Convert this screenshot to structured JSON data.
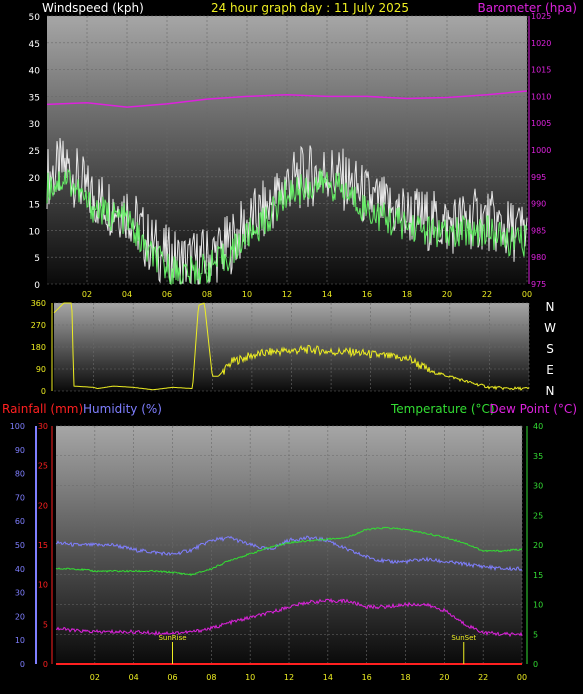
{
  "header": {
    "wind_title": "Windspeed (kph)",
    "graph_title": "24 hour graph day : 11 July 2025",
    "baro_title": "Barometer (hpa)"
  },
  "panel3_titles": {
    "rain": "Rainfall (mm)",
    "humidity": "Humidity (%)",
    "temperature": "Temperature (°C)",
    "dewpoint": "Dew Point (°C)"
  },
  "colors": {
    "wind": "#e8e8e8",
    "wind_avg": "#66ee66",
    "barometer": "#dd22dd",
    "direction": "#eeee22",
    "rain": "#ff2020",
    "humidity": "#7f7fff",
    "temperature": "#33dd33",
    "dewpoint": "#dd22dd",
    "sun": "#eeee22",
    "title": "#eeee22"
  },
  "x_ticks": [
    "02",
    "04",
    "06",
    "08",
    "10",
    "12",
    "14",
    "16",
    "18",
    "20",
    "22",
    "00"
  ],
  "compass": [
    "N",
    "W",
    "S",
    "E",
    "N"
  ],
  "events": {
    "sunrise_label": "SunRise",
    "sunset_label": "SunSet",
    "sunrise_hour": 6.0,
    "sunset_hour": 21.0
  },
  "chart_data": [
    {
      "type": "line",
      "x_unit": "hour",
      "xlim": [
        0,
        24
      ],
      "ylabel": "Windspeed (kph)",
      "ylabel2": "Barometer (hpa)",
      "ylim": [
        0,
        50
      ],
      "ylim2": [
        975,
        1025
      ],
      "yticks": [
        0,
        5,
        10,
        15,
        20,
        25,
        30,
        35,
        40,
        45,
        50
      ],
      "yticks2": [
        975,
        980,
        985,
        990,
        995,
        1000,
        1005,
        1010,
        1015,
        1020,
        1025
      ],
      "grid": true,
      "series": [
        {
          "name": "Windspeed (kph)",
          "axis": "left",
          "x": [
            0,
            1,
            2,
            3,
            4,
            5,
            6,
            7,
            8,
            9,
            10,
            11,
            12,
            13,
            14,
            15,
            16,
            17,
            18,
            19,
            20,
            21,
            22,
            23,
            24
          ],
          "y": [
            18,
            20,
            15,
            13,
            12,
            6,
            3,
            2,
            3,
            5,
            9,
            12,
            17,
            18,
            19,
            17,
            14,
            12,
            11,
            10,
            9,
            10,
            10,
            8,
            8
          ]
        },
        {
          "name": "Barometer (hpa)",
          "axis": "right",
          "x": [
            0,
            2,
            4,
            6,
            8,
            10,
            12,
            14,
            16,
            18,
            20,
            22,
            24
          ],
          "y": [
            1008.5,
            1008.8,
            1008,
            1008.6,
            1009.5,
            1010,
            1010.3,
            1010,
            1010,
            1009.6,
            1009.8,
            1010.3,
            1011
          ]
        }
      ]
    },
    {
      "type": "line",
      "x_unit": "hour",
      "xlim": [
        0,
        24
      ],
      "ylabel": "",
      "ylim": [
        0,
        360
      ],
      "yticks": [
        0,
        45,
        90,
        135,
        180,
        225,
        270,
        315,
        360
      ],
      "series": [
        {
          "name": "",
          "x": [
            0,
            0.5,
            0.9,
            1.0,
            2.0,
            2.2,
            3,
            4,
            5,
            6,
            7,
            7.3,
            7.6,
            8,
            8.3,
            9,
            10,
            11,
            12,
            13,
            14,
            15,
            16,
            17,
            18,
            19,
            20,
            21,
            22,
            23,
            24
          ],
          "y": [
            320,
            360,
            360,
            20,
            15,
            10,
            20,
            15,
            5,
            15,
            10,
            350,
            360,
            60,
            60,
            120,
            145,
            160,
            165,
            170,
            160,
            160,
            150,
            140,
            130,
            80,
            60,
            35,
            15,
            10,
            10
          ]
        }
      ]
    },
    {
      "type": "line",
      "x_unit": "hour",
      "xlim": [
        0,
        24
      ],
      "ylabel": "Rainfall (mm)",
      "ylabel_humidity": "Humidity (%)",
      "ylabel2": "Temperature (°C)",
      "ylabel2_dew": "Dew Point (°C)",
      "ylim_rain": [
        0,
        30
      ],
      "ylim_humidity": [
        0,
        100
      ],
      "ylim_temp": [
        0,
        40
      ],
      "yticks_rain": [
        0,
        5,
        10,
        15,
        20,
        25,
        30
      ],
      "yticks_humidity": [
        0,
        10,
        20,
        30,
        40,
        50,
        60,
        70,
        80,
        90,
        100
      ],
      "yticks_temp": [
        0,
        5,
        10,
        15,
        20,
        25,
        30,
        35,
        40
      ],
      "grid": true,
      "series": [
        {
          "name": "Rainfall (mm)",
          "axis": "rain",
          "x": [
            0,
            24
          ],
          "y": [
            0,
            0
          ]
        },
        {
          "name": "Humidity (%)",
          "axis": "humidity",
          "x": [
            0,
            1,
            2,
            3,
            4,
            5,
            6,
            7,
            8,
            9,
            10,
            11,
            12,
            13,
            14,
            15,
            16,
            17,
            18,
            19,
            20,
            21,
            22,
            23,
            24
          ],
          "y": [
            51,
            50,
            50,
            50,
            48,
            47,
            46,
            48,
            52,
            53,
            50,
            48,
            52,
            53,
            52,
            48,
            45,
            43,
            43,
            44,
            43,
            42,
            41,
            40,
            40
          ]
        },
        {
          "name": "Temperature (°C)",
          "axis": "temp",
          "x": [
            0,
            1,
            2,
            3,
            4,
            5,
            6,
            7,
            8,
            9,
            10,
            11,
            12,
            13,
            14,
            15,
            16,
            17,
            18,
            19,
            20,
            21,
            22,
            23,
            24
          ],
          "y": [
            16,
            16,
            15.6,
            15.6,
            15.6,
            15.6,
            15.4,
            15,
            16,
            17.5,
            18.5,
            19.6,
            20.4,
            20.7,
            21,
            21.3,
            22.6,
            22.9,
            22.6,
            22,
            21.3,
            20.4,
            19,
            19,
            19.3
          ]
        },
        {
          "name": "Dew Point (°C)",
          "axis": "temp",
          "x": [
            0,
            1,
            2,
            3,
            4,
            5,
            6,
            7,
            8,
            9,
            10,
            11,
            12,
            13,
            14,
            15,
            16,
            17,
            18,
            19,
            20,
            21,
            22,
            23,
            24
          ],
          "y": [
            6,
            5.6,
            5.4,
            5.4,
            5.4,
            5.2,
            5.2,
            5.4,
            6,
            7,
            7.8,
            8.6,
            9.6,
            10.4,
            10.6,
            10.6,
            9.6,
            9.6,
            10,
            10,
            9,
            6.8,
            5.3,
            5,
            5
          ]
        }
      ]
    }
  ]
}
